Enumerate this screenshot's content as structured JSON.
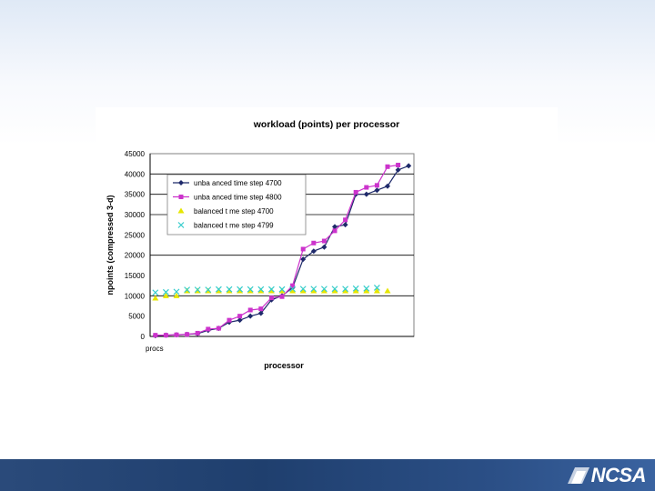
{
  "footer": {
    "logo_text": "NCSA"
  },
  "chart_data": {
    "type": "line",
    "title": "workload (points) per processor",
    "xlabel": "processor",
    "ylabel": "npoints (compressed 3-d)",
    "x_tick_label": "procs",
    "ylim": [
      0,
      45000
    ],
    "yticks": [
      0,
      5000,
      10000,
      15000,
      20000,
      25000,
      30000,
      35000,
      40000,
      45000
    ],
    "x": [
      1,
      2,
      3,
      4,
      5,
      6,
      7,
      8,
      9,
      10,
      11,
      12,
      13,
      14,
      15,
      16,
      17,
      18,
      19,
      20,
      21,
      22,
      23,
      24,
      25
    ],
    "grid": "horizontal",
    "legend_position": "upper-left",
    "series": [
      {
        "name": "unba anced time step 4700",
        "color": "#1f2a6b",
        "marker": "diamond",
        "values": [
          200,
          300,
          400,
          500,
          700,
          1500,
          2000,
          3500,
          4000,
          5000,
          5700,
          9000,
          10000,
          12000,
          19000,
          21000,
          22000,
          27000,
          27500,
          35000,
          35000,
          36000,
          37000,
          41000,
          42000
        ]
      },
      {
        "name": "unba anced time step 4800",
        "color": "#cc33cc",
        "marker": "square",
        "values": [
          300,
          300,
          400,
          500,
          800,
          1800,
          2000,
          4000,
          5000,
          6500,
          6800,
          9500,
          9800,
          12500,
          21500,
          23000,
          23500,
          26000,
          28700,
          35500,
          36700,
          37200,
          41800,
          42200,
          null
        ]
      },
      {
        "name": "balanced t me step 4700",
        "color": "#e6e600",
        "marker": "triangle",
        "line": false,
        "values": [
          9400,
          10000,
          10000,
          11200,
          11200,
          11200,
          11200,
          11200,
          11200,
          11200,
          11200,
          11200,
          11200,
          11200,
          11200,
          11200,
          11200,
          11200,
          11200,
          11200,
          11200,
          11200,
          11200,
          null,
          null
        ]
      },
      {
        "name": "balanced t me step 4799",
        "color": "#33cccc",
        "marker": "x",
        "line": false,
        "values": [
          10800,
          10900,
          11000,
          11500,
          11500,
          11500,
          11600,
          11600,
          11600,
          11600,
          11600,
          11600,
          11600,
          11700,
          11700,
          11700,
          11700,
          11700,
          11700,
          11800,
          11800,
          12000,
          null,
          null,
          null
        ]
      }
    ]
  }
}
